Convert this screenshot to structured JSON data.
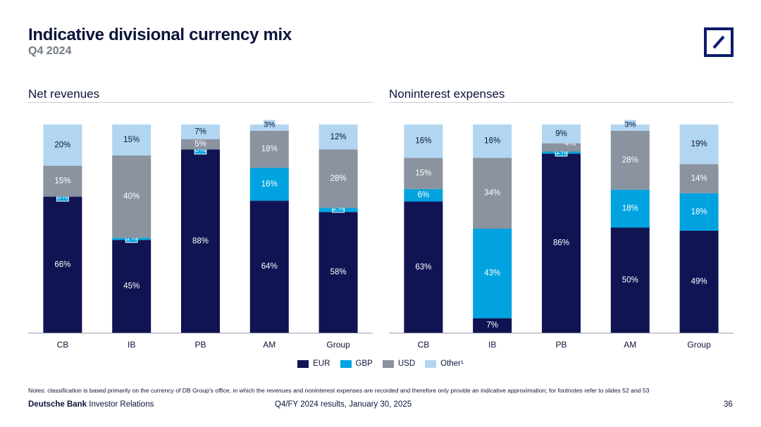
{
  "title": "Indicative divisional currency mix",
  "subtitle": "Q4 2024",
  "colors": {
    "EUR": "#101453",
    "GBP": "#00a3e0",
    "USD": "#8a939f",
    "Other": "#b2d6f1"
  },
  "legend": [
    {
      "key": "EUR",
      "label": "EUR"
    },
    {
      "key": "GBP",
      "label": "GBP"
    },
    {
      "key": "USD",
      "label": "USD"
    },
    {
      "key": "Other",
      "label": "Other¹"
    }
  ],
  "chart_data": [
    {
      "type": "bar",
      "stacked": true,
      "title": "Net revenues",
      "categories": [
        "CB",
        "IB",
        "PB",
        "AM",
        "Group"
      ],
      "ylim": [
        0,
        100
      ],
      "series": [
        {
          "name": "EUR",
          "values": [
            66,
            45,
            88,
            64,
            58
          ]
        },
        {
          "name": "GBP",
          "values": [
            0,
            1,
            0,
            16,
            2
          ]
        },
        {
          "name": "USD",
          "values": [
            15,
            40,
            5,
            18,
            28
          ]
        },
        {
          "name": "Other¹",
          "values": [
            20,
            15,
            7,
            3,
            12
          ]
        }
      ]
    },
    {
      "type": "bar",
      "stacked": true,
      "title": "Noninterest expenses",
      "categories": [
        "CB",
        "IB",
        "PB",
        "AM",
        "Group"
      ],
      "ylim": [
        0,
        100
      ],
      "series": [
        {
          "name": "EUR",
          "values": [
            63,
            7,
            86,
            50,
            49
          ]
        },
        {
          "name": "GBP",
          "values": [
            6,
            43,
            1,
            18,
            18
          ]
        },
        {
          "name": "USD",
          "values": [
            15,
            34,
            4,
            28,
            14
          ]
        },
        {
          "name": "Other¹",
          "values": [
            16,
            16,
            9,
            3,
            19
          ]
        }
      ]
    }
  ],
  "notes": "Notes: classification is based primarily on the currency of DB Group's office, in which the revenues and noninterest expenses are recorded and therefore only provide an indicative approximation; for footnotes refer to slides 52 and 53",
  "footer": {
    "brand_bold": "Deutsche Bank",
    "brand_rest": " Investor Relations",
    "center": "Q4/FY 2024 results, January 30, 2025",
    "page": "36"
  }
}
